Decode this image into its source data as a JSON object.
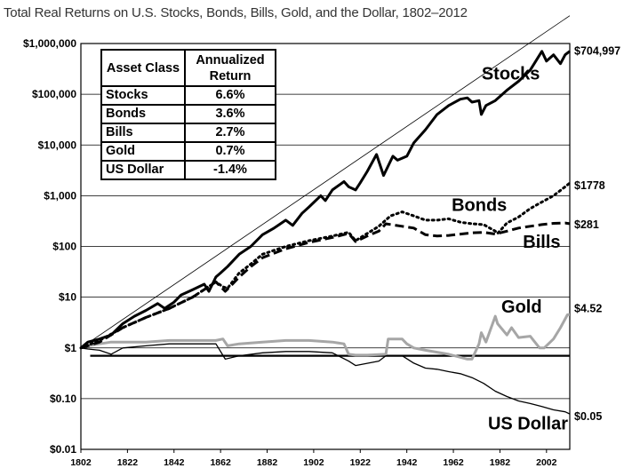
{
  "title": "Total Real Returns on U.S. Stocks, Bonds, Bills, Gold, and the Dollar, 1802–2012",
  "table": {
    "header_class": "Asset Class",
    "header_return": "Annualized Return",
    "rows": [
      {
        "name": "Stocks",
        "value": "6.6%"
      },
      {
        "name": "Bonds",
        "value": "3.6%"
      },
      {
        "name": "Bills",
        "value": "2.7%"
      },
      {
        "name": "Gold",
        "value": "0.7%"
      },
      {
        "name": "US Dollar",
        "value": "-1.4%"
      }
    ]
  },
  "chart_data": {
    "type": "line",
    "title": "Total Real Returns on U.S. Stocks, Bonds, Bills, Gold, and the Dollar, 1802–2012",
    "xlabel": "",
    "ylabel": "",
    "xlim": [
      1802,
      2012
    ],
    "ylim": [
      0.01,
      1000000
    ],
    "yscale": "log",
    "grid": true,
    "x_ticks": [
      "1802",
      "1822",
      "1842",
      "1862",
      "1882",
      "1902",
      "1922",
      "1942",
      "1962",
      "1982",
      "2002"
    ],
    "y_ticks": [
      {
        "value": 0.01,
        "label": "$0.01"
      },
      {
        "value": 0.1,
        "label": "$0.10"
      },
      {
        "value": 1,
        "label": "$1"
      },
      {
        "value": 10,
        "label": "$10"
      },
      {
        "value": 100,
        "label": "$100"
      },
      {
        "value": 1000,
        "label": "$1,000"
      },
      {
        "value": 10000,
        "label": "$10,000"
      },
      {
        "value": 100000,
        "label": "$100,000"
      },
      {
        "value": 1000000,
        "label": "$1,000,000"
      }
    ],
    "series": [
      {
        "name": "Stocks",
        "end_label": "$704,997",
        "color": "#000000",
        "style": "solid-thick",
        "points": [
          [
            1802,
            1
          ],
          [
            1805,
            1.3
          ],
          [
            1810,
            1.5
          ],
          [
            1815,
            1.8
          ],
          [
            1820,
            3
          ],
          [
            1825,
            4.2
          ],
          [
            1830,
            5.5
          ],
          [
            1835,
            7.5
          ],
          [
            1838,
            6
          ],
          [
            1842,
            8
          ],
          [
            1845,
            11
          ],
          [
            1850,
            14
          ],
          [
            1855,
            18
          ],
          [
            1857,
            13
          ],
          [
            1860,
            25
          ],
          [
            1862,
            30
          ],
          [
            1865,
            40
          ],
          [
            1870,
            70
          ],
          [
            1875,
            100
          ],
          [
            1880,
            170
          ],
          [
            1885,
            230
          ],
          [
            1890,
            330
          ],
          [
            1893,
            260
          ],
          [
            1897,
            450
          ],
          [
            1900,
            600
          ],
          [
            1905,
            1000
          ],
          [
            1907,
            800
          ],
          [
            1910,
            1300
          ],
          [
            1915,
            1900
          ],
          [
            1917,
            1500
          ],
          [
            1920,
            1300
          ],
          [
            1922,
            1800
          ],
          [
            1925,
            3000
          ],
          [
            1929,
            6500
          ],
          [
            1932,
            2500
          ],
          [
            1936,
            6000
          ],
          [
            1938,
            5000
          ],
          [
            1942,
            6000
          ],
          [
            1945,
            11000
          ],
          [
            1950,
            20000
          ],
          [
            1955,
            40000
          ],
          [
            1960,
            60000
          ],
          [
            1965,
            80000
          ],
          [
            1968,
            85000
          ],
          [
            1970,
            70000
          ],
          [
            1973,
            75000
          ],
          [
            1974,
            40000
          ],
          [
            1976,
            60000
          ],
          [
            1980,
            75000
          ],
          [
            1985,
            120000
          ],
          [
            1990,
            180000
          ],
          [
            1995,
            300000
          ],
          [
            2000,
            700000
          ],
          [
            2002,
            450000
          ],
          [
            2005,
            600000
          ],
          [
            2008,
            400000
          ],
          [
            2010,
            600000
          ],
          [
            2012,
            704997
          ]
        ]
      },
      {
        "name": "Bonds",
        "end_label": "$1778",
        "color": "#000000",
        "style": "dotted",
        "points": [
          [
            1802,
            1
          ],
          [
            1810,
            1.4
          ],
          [
            1820,
            2.5
          ],
          [
            1830,
            4
          ],
          [
            1840,
            6
          ],
          [
            1850,
            10
          ],
          [
            1860,
            20
          ],
          [
            1863,
            16
          ],
          [
            1865,
            15
          ],
          [
            1870,
            30
          ],
          [
            1875,
            45
          ],
          [
            1880,
            70
          ],
          [
            1890,
            100
          ],
          [
            1900,
            130
          ],
          [
            1910,
            160
          ],
          [
            1917,
            190
          ],
          [
            1920,
            130
          ],
          [
            1925,
            180
          ],
          [
            1930,
            250
          ],
          [
            1935,
            400
          ],
          [
            1940,
            480
          ],
          [
            1945,
            400
          ],
          [
            1950,
            330
          ],
          [
            1955,
            330
          ],
          [
            1960,
            350
          ],
          [
            1965,
            300
          ],
          [
            1970,
            280
          ],
          [
            1975,
            270
          ],
          [
            1980,
            200
          ],
          [
            1981,
            180
          ],
          [
            1985,
            290
          ],
          [
            1990,
            380
          ],
          [
            1995,
            560
          ],
          [
            2000,
            750
          ],
          [
            2005,
            1000
          ],
          [
            2010,
            1500
          ],
          [
            2012,
            1778
          ]
        ]
      },
      {
        "name": "Bills",
        "end_label": "$281",
        "color": "#000000",
        "style": "dashed",
        "points": [
          [
            1802,
            1
          ],
          [
            1810,
            1.3
          ],
          [
            1820,
            2.5
          ],
          [
            1830,
            4
          ],
          [
            1840,
            6
          ],
          [
            1850,
            10
          ],
          [
            1860,
            20
          ],
          [
            1864,
            13
          ],
          [
            1866,
            16
          ],
          [
            1870,
            25
          ],
          [
            1875,
            40
          ],
          [
            1880,
            60
          ],
          [
            1890,
            90
          ],
          [
            1900,
            120
          ],
          [
            1910,
            150
          ],
          [
            1917,
            180
          ],
          [
            1920,
            125
          ],
          [
            1925,
            160
          ],
          [
            1930,
            200
          ],
          [
            1933,
            280
          ],
          [
            1940,
            250
          ],
          [
            1945,
            230
          ],
          [
            1950,
            170
          ],
          [
            1955,
            160
          ],
          [
            1960,
            165
          ],
          [
            1965,
            175
          ],
          [
            1970,
            185
          ],
          [
            1975,
            190
          ],
          [
            1980,
            175
          ],
          [
            1985,
            200
          ],
          [
            1990,
            230
          ],
          [
            1995,
            250
          ],
          [
            2000,
            270
          ],
          [
            2005,
            285
          ],
          [
            2010,
            290
          ],
          [
            2012,
            281
          ]
        ]
      },
      {
        "name": "Gold",
        "end_label": "$4.52",
        "color": "#a6a6a6",
        "style": "solid-gray",
        "points": [
          [
            1802,
            1
          ],
          [
            1805,
            1.1
          ],
          [
            1810,
            1.2
          ],
          [
            1815,
            1.3
          ],
          [
            1820,
            1.3
          ],
          [
            1830,
            1.3
          ],
          [
            1840,
            1.4
          ],
          [
            1850,
            1.4
          ],
          [
            1860,
            1.4
          ],
          [
            1863,
            1.5
          ],
          [
            1865,
            1.1
          ],
          [
            1870,
            1.2
          ],
          [
            1880,
            1.3
          ],
          [
            1890,
            1.4
          ],
          [
            1900,
            1.4
          ],
          [
            1910,
            1.3
          ],
          [
            1915,
            1.2
          ],
          [
            1917,
            0.75
          ],
          [
            1920,
            0.72
          ],
          [
            1925,
            0.72
          ],
          [
            1933,
            0.75
          ],
          [
            1934,
            1.5
          ],
          [
            1940,
            1.5
          ],
          [
            1942,
            1.2
          ],
          [
            1945,
            1
          ],
          [
            1950,
            0.9
          ],
          [
            1960,
            0.75
          ],
          [
            1968,
            0.6
          ],
          [
            1970,
            0.6
          ],
          [
            1973,
            1.2
          ],
          [
            1974,
            2
          ],
          [
            1976,
            1.3
          ],
          [
            1980,
            4.2
          ],
          [
            1981,
            3
          ],
          [
            1985,
            1.8
          ],
          [
            1987,
            2.5
          ],
          [
            1990,
            1.6
          ],
          [
            1995,
            1.7
          ],
          [
            1999,
            1
          ],
          [
            2001,
            1
          ],
          [
            2005,
            1.5
          ],
          [
            2008,
            2.5
          ],
          [
            2011,
            4.5
          ],
          [
            2012,
            4.52
          ]
        ]
      },
      {
        "name": "US Dollar",
        "end_label": "$0.05",
        "color": "#000000",
        "style": "solid-thin",
        "points": [
          [
            1802,
            1
          ],
          [
            1805,
            0.95
          ],
          [
            1810,
            0.9
          ],
          [
            1815,
            0.75
          ],
          [
            1820,
            1
          ],
          [
            1830,
            1.1
          ],
          [
            1840,
            1.2
          ],
          [
            1850,
            1.2
          ],
          [
            1860,
            1.2
          ],
          [
            1864,
            0.6
          ],
          [
            1870,
            0.7
          ],
          [
            1880,
            0.8
          ],
          [
            1890,
            0.85
          ],
          [
            1900,
            0.85
          ],
          [
            1910,
            0.8
          ],
          [
            1917,
            0.55
          ],
          [
            1920,
            0.45
          ],
          [
            1930,
            0.55
          ],
          [
            1933,
            0.7
          ],
          [
            1940,
            0.7
          ],
          [
            1945,
            0.5
          ],
          [
            1950,
            0.4
          ],
          [
            1955,
            0.38
          ],
          [
            1960,
            0.34
          ],
          [
            1965,
            0.31
          ],
          [
            1970,
            0.26
          ],
          [
            1975,
            0.2
          ],
          [
            1980,
            0.14
          ],
          [
            1985,
            0.11
          ],
          [
            1990,
            0.09
          ],
          [
            1995,
            0.08
          ],
          [
            2000,
            0.07
          ],
          [
            2005,
            0.06
          ],
          [
            2010,
            0.055
          ],
          [
            2012,
            0.05
          ]
        ]
      }
    ],
    "reference_line": {
      "value": 0.7,
      "from": 1806,
      "to": 2012
    }
  }
}
